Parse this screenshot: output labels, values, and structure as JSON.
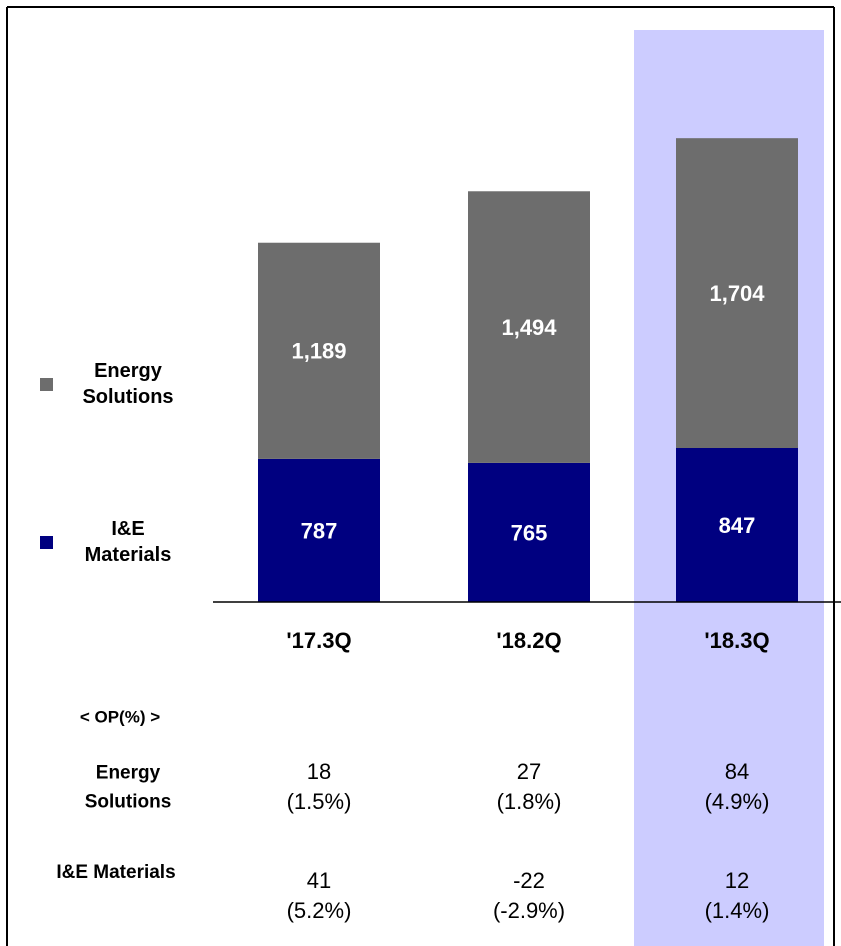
{
  "chart_data": {
    "type": "stacked_bar",
    "categories": [
      "'17.3Q",
      "'18.2Q",
      "'18.3Q"
    ],
    "series": [
      {
        "name": "I&E Materials",
        "color": "#000080",
        "values": [
          787,
          765,
          847
        ],
        "value_labels": [
          "787",
          "765",
          "847"
        ]
      },
      {
        "name": "Energy Solutions",
        "color": "#6d6d6d",
        "values": [
          1189,
          1494,
          1704
        ],
        "value_labels": [
          "1,189",
          "1,494",
          "1,704"
        ]
      }
    ],
    "ylim": [
      0,
      3300
    ],
    "highlight_index": 2,
    "highlight_color": "#ccccff"
  },
  "op_table": {
    "title": "< OP(%) >",
    "rows": [
      {
        "name": "Energy Solutions",
        "values": [
          18,
          27,
          84
        ],
        "margins": [
          "(1.5%)",
          "(1.8%)",
          "(4.9%)"
        ]
      },
      {
        "name": "I&E Materials",
        "values": [
          41,
          -22,
          12
        ],
        "margins": [
          "(5.2%)",
          "(-2.9%)",
          "(1.4%)"
        ]
      }
    ]
  }
}
